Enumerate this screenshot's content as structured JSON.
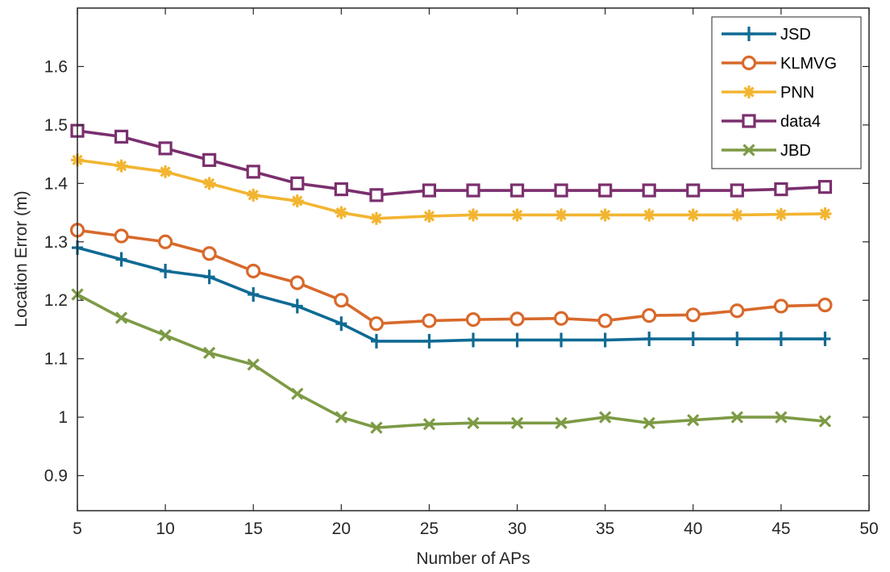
{
  "chart_data": {
    "type": "line",
    "title": "",
    "xlabel": "Number of APs",
    "ylabel": "Location Error (m)",
    "xlim": [
      5,
      50
    ],
    "ylim": [
      0.84,
      1.7
    ],
    "xticks": [
      5,
      10,
      15,
      20,
      25,
      30,
      35,
      40,
      45,
      50
    ],
    "xtick_labels": [
      "5",
      "10",
      "15",
      "20",
      "25",
      "30",
      "35",
      "40",
      "45",
      "50"
    ],
    "yticks": [
      0.9,
      1.0,
      1.1,
      1.2,
      1.3,
      1.4,
      1.5,
      1.6
    ],
    "ytick_labels": [
      "0.9",
      "1",
      "1.1",
      "1.2",
      "1.3",
      "1.4",
      "1.5",
      "1.6"
    ],
    "grid": false,
    "legend_position": "top-right",
    "x": [
      5,
      7.5,
      10,
      12.5,
      15,
      17.5,
      20,
      22,
      25,
      27.5,
      30,
      32.5,
      35,
      37.5,
      40,
      42.5,
      45,
      47.5
    ],
    "series": [
      {
        "name": "JSD",
        "color": "#0f6a94",
        "marker": "plus",
        "values": [
          1.29,
          1.27,
          1.25,
          1.24,
          1.21,
          1.19,
          1.16,
          1.13,
          1.13,
          1.132,
          1.132,
          1.132,
          1.132,
          1.134,
          1.134,
          1.134,
          1.134,
          1.134
        ]
      },
      {
        "name": "KLMVG",
        "color": "#d8692b",
        "marker": "circle",
        "values": [
          1.32,
          1.31,
          1.3,
          1.28,
          1.25,
          1.23,
          1.2,
          1.16,
          1.165,
          1.167,
          1.168,
          1.169,
          1.165,
          1.174,
          1.175,
          1.182,
          1.19,
          1.192
        ]
      },
      {
        "name": "PNN",
        "color": "#f2b531",
        "marker": "star",
        "values": [
          1.44,
          1.43,
          1.42,
          1.4,
          1.38,
          1.37,
          1.35,
          1.34,
          1.344,
          1.346,
          1.346,
          1.346,
          1.346,
          1.346,
          1.346,
          1.346,
          1.347,
          1.348
        ]
      },
      {
        "name": "data4",
        "color": "#7b2f6e",
        "marker": "square",
        "values": [
          1.49,
          1.48,
          1.46,
          1.44,
          1.42,
          1.4,
          1.39,
          1.38,
          1.388,
          1.388,
          1.388,
          1.388,
          1.388,
          1.388,
          1.388,
          1.388,
          1.39,
          1.394
        ]
      },
      {
        "name": "JBD",
        "color": "#7d9a45",
        "marker": "x",
        "values": [
          1.21,
          1.17,
          1.14,
          1.11,
          1.09,
          1.04,
          1.0,
          0.982,
          0.988,
          0.99,
          0.99,
          0.99,
          1.0,
          0.99,
          0.995,
          1.0,
          1.0,
          0.993
        ]
      }
    ]
  }
}
